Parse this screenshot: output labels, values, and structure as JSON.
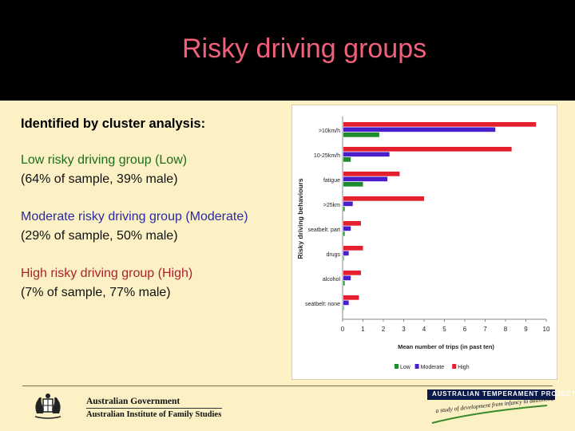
{
  "slide": {
    "title": "Risky driving groups",
    "subhead": "Identified by cluster analysis:",
    "groups": [
      {
        "name": "Low risky driving group (Low)",
        "detail": "(64% of sample, 39% male)"
      },
      {
        "name": "Moderate risky driving group (Moderate)",
        "detail": "(29% of sample, 50% male)"
      },
      {
        "name": "High risky driving group (High)",
        "detail": "(7% of sample, 77% male)"
      }
    ]
  },
  "colors": {
    "low": "#1e8a2e",
    "moderate": "#4a1ec8",
    "high": "#e4202e",
    "title": "#f0607a"
  },
  "footer": {
    "gov_line1": "Australian Government",
    "gov_line2": "Australian Institute of Family Studies",
    "atp_name": "AUSTRALIAN TEMPERAMENT PROJECT",
    "atp_tagline": "a study of development from infancy to adulthood"
  },
  "chart_data": {
    "type": "bar",
    "orientation": "horizontal",
    "categories": [
      ">10km/h",
      "10-25km/h",
      "fatigue",
      ">25km",
      "seatbelt: part",
      "drugs",
      "alcohol",
      "seatbelt: none"
    ],
    "series": [
      {
        "name": "High",
        "values": [
          9.5,
          8.3,
          2.8,
          4.0,
          0.9,
          1.0,
          0.9,
          0.8
        ]
      },
      {
        "name": "Moderate",
        "values": [
          7.5,
          2.3,
          2.2,
          0.5,
          0.4,
          0.3,
          0.4,
          0.3
        ]
      },
      {
        "name": "Low",
        "values": [
          1.8,
          0.4,
          1.0,
          0.1,
          0.1,
          0.05,
          0.1,
          0.05
        ]
      }
    ],
    "xlabel": "Mean number of trips (in past ten)",
    "ylabel": "Risky driving behaviours",
    "xlim": [
      0,
      10
    ],
    "xticks": [
      "0",
      "1",
      "2",
      "3",
      "4",
      "5",
      "6",
      "7",
      "8",
      "9",
      "10"
    ],
    "grid": false,
    "legend": "bottom-right"
  }
}
